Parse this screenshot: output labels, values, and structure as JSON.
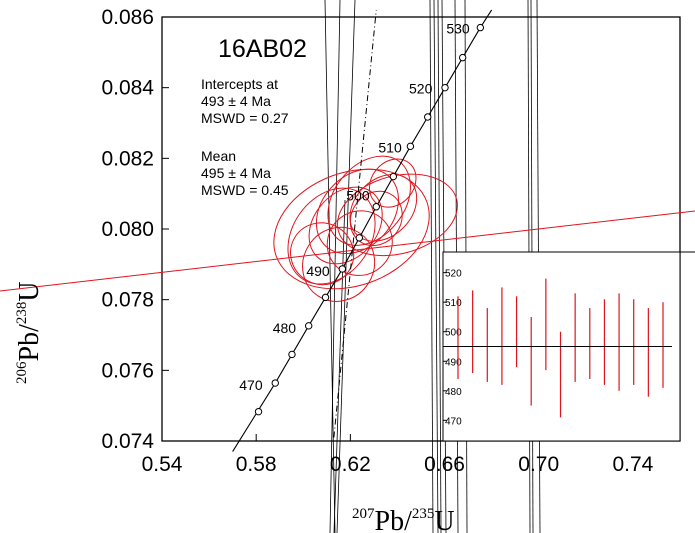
{
  "chart_data": {
    "type": "scatter",
    "title": "16AB02",
    "xlabel": {
      "iso1": "207",
      "el1": "Pb/",
      "iso2": "235",
      "el2": "U"
    },
    "ylabel": {
      "iso1": "206",
      "el1": "Pb/",
      "iso2": "238",
      "el2": "U"
    },
    "xlim": [
      0.54,
      0.76
    ],
    "ylim": [
      0.074,
      0.086
    ],
    "xticks": [
      "0.54",
      "0.58",
      "0.62",
      "0.66",
      "0.70",
      "0.74"
    ],
    "yticks": [
      "0.074",
      "0.076",
      "0.078",
      "0.080",
      "0.082",
      "0.084",
      "0.086"
    ],
    "annotations": {
      "intercept_header": "Intercepts at",
      "intercept_value": "493 ± 4 Ma",
      "intercept_mswd": "MSWD = 0.27",
      "mean_header": "Mean",
      "mean_value": "495 ± 4 Ma",
      "mean_mswd": "MSWD = 0.45"
    },
    "concordia": {
      "labels": [
        "470",
        "480",
        "490",
        "500",
        "510",
        "520",
        "530"
      ],
      "points": [
        {
          "age": 470,
          "x": 0.5881,
          "y": 0.07564
        },
        {
          "age": 480,
          "x": 0.6023,
          "y": 0.07726
        },
        {
          "age": 490,
          "x": 0.6166,
          "y": 0.07887
        },
        {
          "age": 500,
          "x": 0.631,
          "y": 0.08063
        },
        {
          "age": 510,
          "x": 0.6455,
          "y": 0.08234
        },
        {
          "age": 520,
          "x": 0.6602,
          "y": 0.084
        },
        {
          "age": 530,
          "x": 0.6752,
          "y": 0.0857
        }
      ]
    },
    "ellipses": [
      {
        "x": 0.6205,
        "y": 0.08,
        "rx": 0.034,
        "ry": 0.0016,
        "angle": -20
      },
      {
        "x": 0.612,
        "y": 0.0798,
        "rx": 0.022,
        "ry": 0.0011,
        "angle": -55
      },
      {
        "x": 0.618,
        "y": 0.0801,
        "rx": 0.018,
        "ry": 0.0009,
        "angle": -50
      },
      {
        "x": 0.623,
        "y": 0.0805,
        "rx": 0.02,
        "ry": 0.001,
        "angle": -48
      },
      {
        "x": 0.628,
        "y": 0.0808,
        "rx": 0.021,
        "ry": 0.001,
        "angle": -52
      },
      {
        "x": 0.634,
        "y": 0.0806,
        "rx": 0.016,
        "ry": 0.0008,
        "angle": -45
      },
      {
        "x": 0.615,
        "y": 0.079,
        "rx": 0.016,
        "ry": 0.001,
        "angle": -58
      },
      {
        "x": 0.624,
        "y": 0.0796,
        "rx": 0.014,
        "ry": 0.0009,
        "angle": -40
      },
      {
        "x": 0.631,
        "y": 0.0803,
        "rx": 0.012,
        "ry": 0.0007,
        "angle": -55
      },
      {
        "x": 0.638,
        "y": 0.0813,
        "rx": 0.011,
        "ry": 0.0006,
        "angle": -50
      },
      {
        "x": 0.608,
        "y": 0.0793,
        "rx": 0.013,
        "ry": 0.0009,
        "angle": -62
      },
      {
        "x": 0.64,
        "y": 0.0804,
        "rx": 0.026,
        "ry": 0.0011,
        "angle": -15
      }
    ],
    "inset": {
      "yticks": [
        "470",
        "480",
        "490",
        "500",
        "510",
        "520"
      ],
      "ylim": [
        463,
        527
      ],
      "mean": 495,
      "upper": 517,
      "bars": [
        {
          "lo": 484,
          "hi": 512
        },
        {
          "lo": 486,
          "hi": 514
        },
        {
          "lo": 483,
          "hi": 508
        },
        {
          "lo": 482,
          "hi": 515
        },
        {
          "lo": 488,
          "hi": 512
        },
        {
          "lo": 475,
          "hi": 505
        },
        {
          "lo": 487,
          "hi": 518
        },
        {
          "lo": 471,
          "hi": 500
        },
        {
          "lo": 483,
          "hi": 513
        },
        {
          "lo": 484,
          "hi": 508
        },
        {
          "lo": 482,
          "hi": 511
        },
        {
          "lo": 480,
          "hi": 513
        },
        {
          "lo": 482,
          "hi": 511
        },
        {
          "lo": 478,
          "hi": 508
        },
        {
          "lo": 481,
          "hi": 510
        }
      ]
    },
    "colors": {
      "ellipse": "#e0141e",
      "axes": "#000000",
      "background": "#ffffff"
    }
  }
}
